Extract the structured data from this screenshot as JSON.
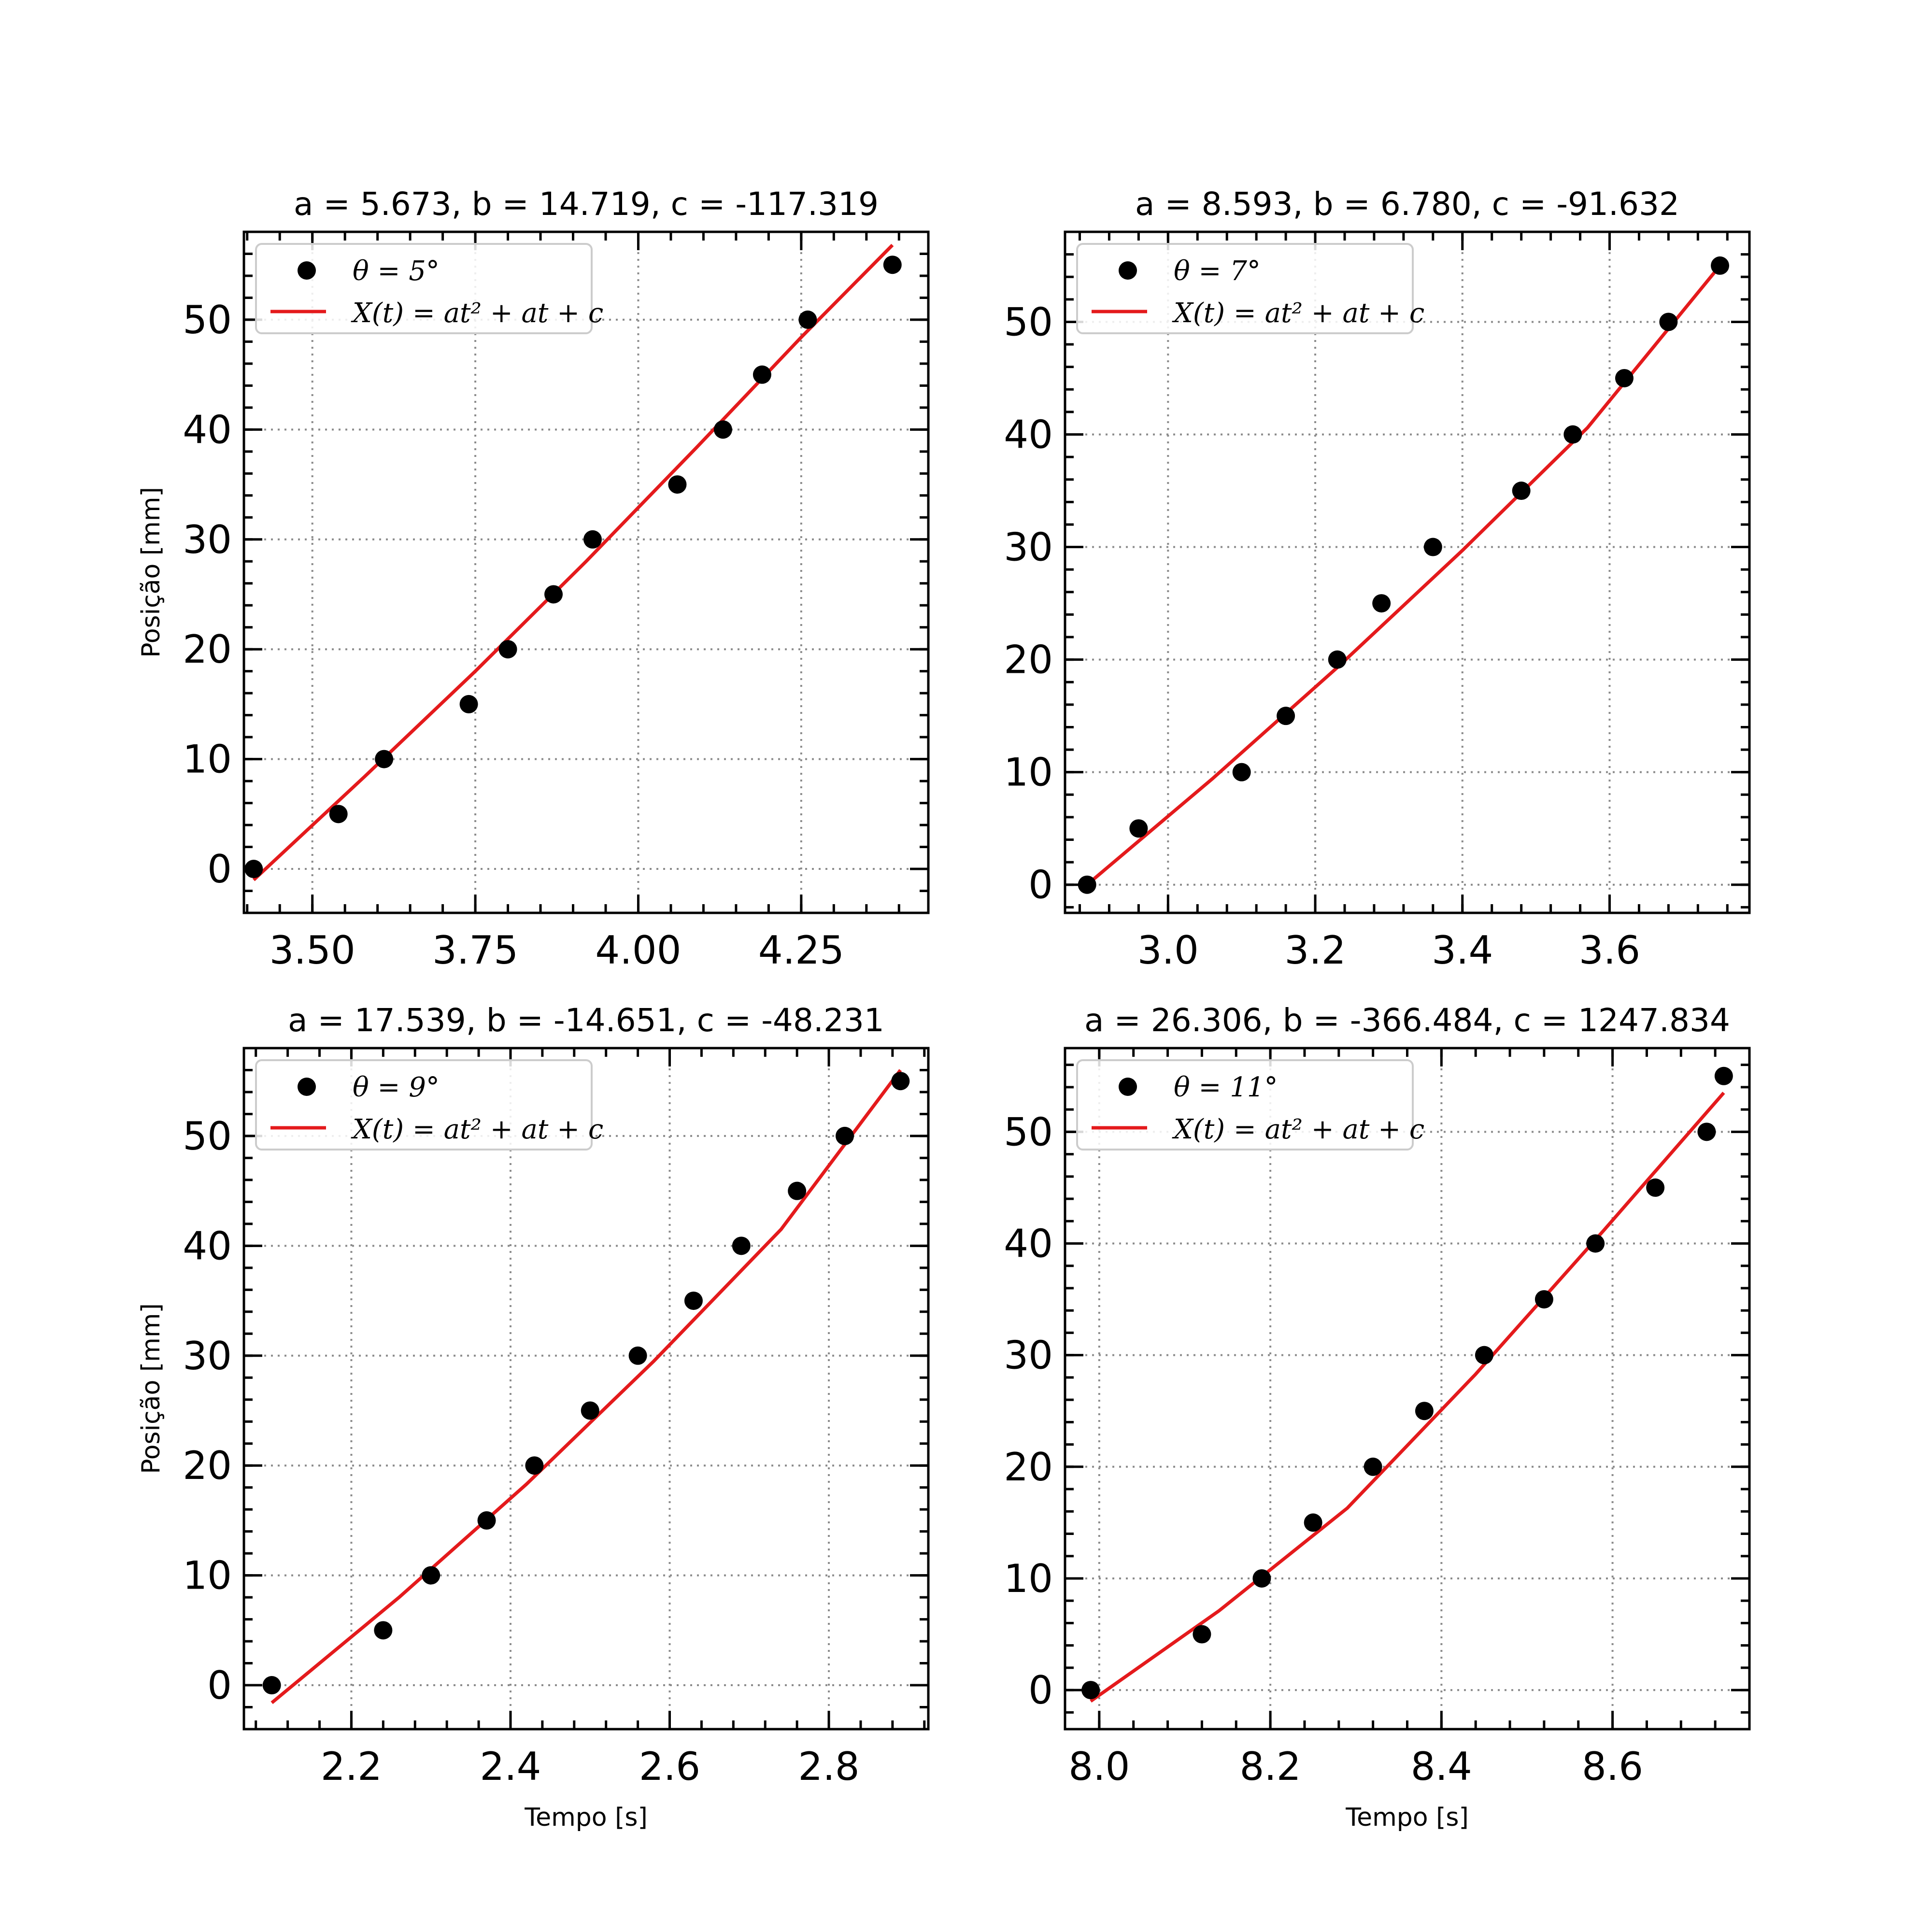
{
  "chart_data": [
    {
      "type": "scatter",
      "title": "a = 5.673, b = 14.719, c = -117.319",
      "xlabel": "",
      "ylabel": "Posição [mm]",
      "xlim": [
        3.395,
        4.445
      ],
      "ylim": [
        -4,
        58
      ],
      "xticks": [
        3.5,
        3.75,
        4.0,
        4.25
      ],
      "xtick_labels": [
        "3.50",
        "3.75",
        "4.00",
        "4.25"
      ],
      "yticks": [
        0,
        10,
        20,
        30,
        40,
        50
      ],
      "ytick_labels": [
        "0",
        "10",
        "20",
        "30",
        "40",
        "50"
      ],
      "grid": true,
      "legend_position": "top-left",
      "series": [
        {
          "name": "θ = 5°",
          "kind": "scatter",
          "color": "#000000",
          "x": [
            3.41,
            3.54,
            3.61,
            3.74,
            3.8,
            3.87,
            3.93,
            4.06,
            4.13,
            4.19,
            4.26,
            4.39
          ],
          "y": [
            0,
            5,
            10,
            15,
            20,
            25,
            30,
            35,
            40,
            45,
            50,
            55
          ]
        },
        {
          "name": "X(t) = at² + at + c",
          "kind": "line",
          "color": "#e41a1c",
          "x": [
            3.41,
            3.58,
            3.75,
            3.92,
            4.09,
            4.25,
            4.39
          ],
          "y": [
            -1.0,
            8.4,
            18.0,
            28.0,
            38.4,
            48.4,
            56.8
          ]
        }
      ]
    },
    {
      "type": "scatter",
      "title": "a = 8.593, b = 6.780, c = -91.632",
      "xlabel": "",
      "ylabel": "",
      "xlim": [
        2.86,
        3.79
      ],
      "ylim": [
        -2.5,
        58
      ],
      "xticks": [
        3.0,
        3.2,
        3.4,
        3.6
      ],
      "xtick_labels": [
        "3.0",
        "3.2",
        "3.4",
        "3.6"
      ],
      "yticks": [
        0,
        10,
        20,
        30,
        40,
        50
      ],
      "ytick_labels": [
        "0",
        "10",
        "20",
        "30",
        "40",
        "50"
      ],
      "grid": true,
      "legend_position": "top-left",
      "series": [
        {
          "name": "θ = 7°",
          "kind": "scatter",
          "color": "#000000",
          "x": [
            2.89,
            2.96,
            3.1,
            3.16,
            3.23,
            3.29,
            3.36,
            3.48,
            3.55,
            3.62,
            3.68,
            3.75
          ],
          "y": [
            0,
            5,
            10,
            15,
            20,
            25,
            30,
            35,
            40,
            45,
            50,
            55
          ]
        },
        {
          "name": "X(t) = at² + at + c",
          "kind": "line",
          "color": "#e41a1c",
          "x": [
            2.89,
            3.06,
            3.23,
            3.4,
            3.57,
            3.75
          ],
          "y": [
            0.0,
            9.4,
            19.3,
            29.7,
            40.6,
            55.0
          ]
        }
      ]
    },
    {
      "type": "scatter",
      "title": "a = 17.539, b = -14.651, c = -48.231",
      "xlabel": "Tempo [s]",
      "ylabel": "Posição [mm]",
      "xlim": [
        2.065,
        2.925
      ],
      "ylim": [
        -4,
        58
      ],
      "xticks": [
        2.2,
        2.4,
        2.6,
        2.8
      ],
      "xtick_labels": [
        "2.2",
        "2.4",
        "2.6",
        "2.8"
      ],
      "yticks": [
        0,
        10,
        20,
        30,
        40,
        50
      ],
      "ytick_labels": [
        "0",
        "10",
        "20",
        "30",
        "40",
        "50"
      ],
      "grid": true,
      "legend_position": "top-left",
      "series": [
        {
          "name": "θ = 9°",
          "kind": "scatter",
          "color": "#000000",
          "x": [
            2.1,
            2.24,
            2.3,
            2.37,
            2.43,
            2.5,
            2.56,
            2.63,
            2.69,
            2.76,
            2.82,
            2.89
          ],
          "y": [
            0,
            5,
            10,
            15,
            20,
            25,
            30,
            35,
            40,
            45,
            50,
            55
          ]
        },
        {
          "name": "X(t) = at² + at + c",
          "kind": "line",
          "color": "#e41a1c",
          "x": [
            2.1,
            2.26,
            2.42,
            2.58,
            2.74,
            2.89
          ],
          "y": [
            -1.6,
            8.0,
            18.3,
            29.5,
            41.5,
            56.0
          ]
        }
      ]
    },
    {
      "type": "scatter",
      "title": "a = 26.306, b = -366.484, c = 1247.834",
      "xlabel": "Tempo [s]",
      "ylabel": "",
      "xlim": [
        7.96,
        8.76
      ],
      "ylim": [
        -3.5,
        57.5
      ],
      "xticks": [
        8.0,
        8.2,
        8.4,
        8.6
      ],
      "xtick_labels": [
        "8.0",
        "8.2",
        "8.4",
        "8.6"
      ],
      "yticks": [
        0,
        10,
        20,
        30,
        40,
        50
      ],
      "ytick_labels": [
        "0",
        "10",
        "20",
        "30",
        "40",
        "50"
      ],
      "grid": true,
      "legend_position": "top-left",
      "series": [
        {
          "name": "θ = 11°",
          "kind": "scatter",
          "color": "#000000",
          "x": [
            7.99,
            8.12,
            8.19,
            8.25,
            8.32,
            8.38,
            8.45,
            8.52,
            8.58,
            8.65,
            8.71,
            8.73
          ],
          "y": [
            0,
            5,
            10,
            15,
            20,
            25,
            30,
            35,
            40,
            45,
            50,
            55
          ]
        },
        {
          "name": "X(t) = at² + at + c",
          "kind": "line",
          "color": "#e41a1c",
          "x": [
            7.99,
            8.14,
            8.29,
            8.44,
            8.59,
            8.73
          ],
          "y": [
            -1.0,
            7.1,
            16.3,
            28.3,
            41.2,
            53.5
          ]
        }
      ]
    }
  ]
}
